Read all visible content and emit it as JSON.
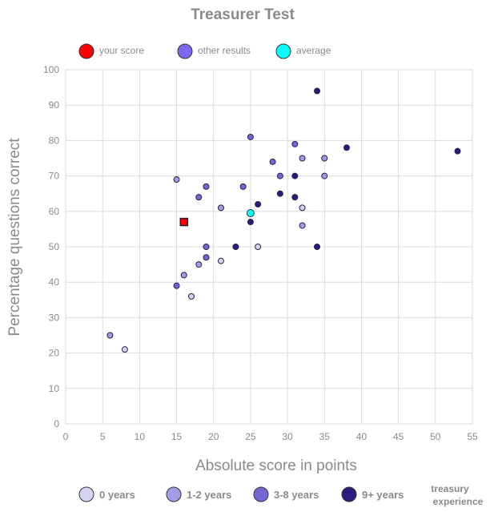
{
  "chart_data": {
    "type": "scatter",
    "title": "Treasurer Test",
    "xlabel": "Absolute score in points",
    "ylabel": "Percentage questions correct",
    "xlim": [
      0,
      55
    ],
    "ylim": [
      0,
      100
    ],
    "x_ticks": [
      "0",
      "5",
      "10",
      "15",
      "20",
      "25",
      "30",
      "35",
      "40",
      "45",
      "50",
      "55"
    ],
    "y_ticks": [
      "0",
      "10",
      "20",
      "30",
      "40",
      "50",
      "60",
      "70",
      "80",
      "90",
      "100"
    ],
    "grid": true,
    "top_legend": [
      {
        "label": "your score",
        "color": "#ff0000"
      },
      {
        "label": "other results",
        "color": "#7b68ee"
      },
      {
        "label": "average",
        "color": "#00ffff"
      }
    ],
    "bottom_legend": {
      "title_line1": "treasury",
      "title_line2": "experience",
      "items": [
        {
          "label": "0 years",
          "color": "#d6d4f4"
        },
        {
          "label": "1-2 years",
          "color": "#a49ce6"
        },
        {
          "label": "3-8 years",
          "color": "#7367d8"
        },
        {
          "label": "9+ years",
          "color": "#2b1d7e"
        }
      ]
    },
    "your_score": {
      "x": 16,
      "y": 57
    },
    "average": {
      "x": 25,
      "y": 59.5
    },
    "series": [
      {
        "name": "0 years",
        "points": [
          [
            8,
            21
          ],
          [
            17,
            36
          ],
          [
            21,
            46
          ],
          [
            26,
            50
          ],
          [
            32,
            61
          ]
        ]
      },
      {
        "name": "1-2 years",
        "points": [
          [
            6,
            25
          ],
          [
            15,
            69
          ],
          [
            16,
            42
          ],
          [
            18,
            45
          ],
          [
            21,
            61
          ],
          [
            32,
            56
          ],
          [
            32,
            75
          ],
          [
            35,
            70
          ],
          [
            35,
            75
          ]
        ]
      },
      {
        "name": "3-8 years",
        "points": [
          [
            15,
            39
          ],
          [
            18,
            64
          ],
          [
            19,
            47
          ],
          [
            19,
            50
          ],
          [
            19,
            67
          ],
          [
            24,
            67
          ],
          [
            25,
            81
          ],
          [
            28,
            74
          ],
          [
            29,
            70
          ],
          [
            31,
            79
          ]
        ]
      },
      {
        "name": "9+ years",
        "points": [
          [
            23,
            50
          ],
          [
            25,
            57
          ],
          [
            26,
            62
          ],
          [
            29,
            65
          ],
          [
            31,
            70
          ],
          [
            31,
            64
          ],
          [
            34,
            94
          ],
          [
            34,
            50
          ],
          [
            38,
            78
          ],
          [
            53,
            77
          ]
        ]
      }
    ]
  }
}
